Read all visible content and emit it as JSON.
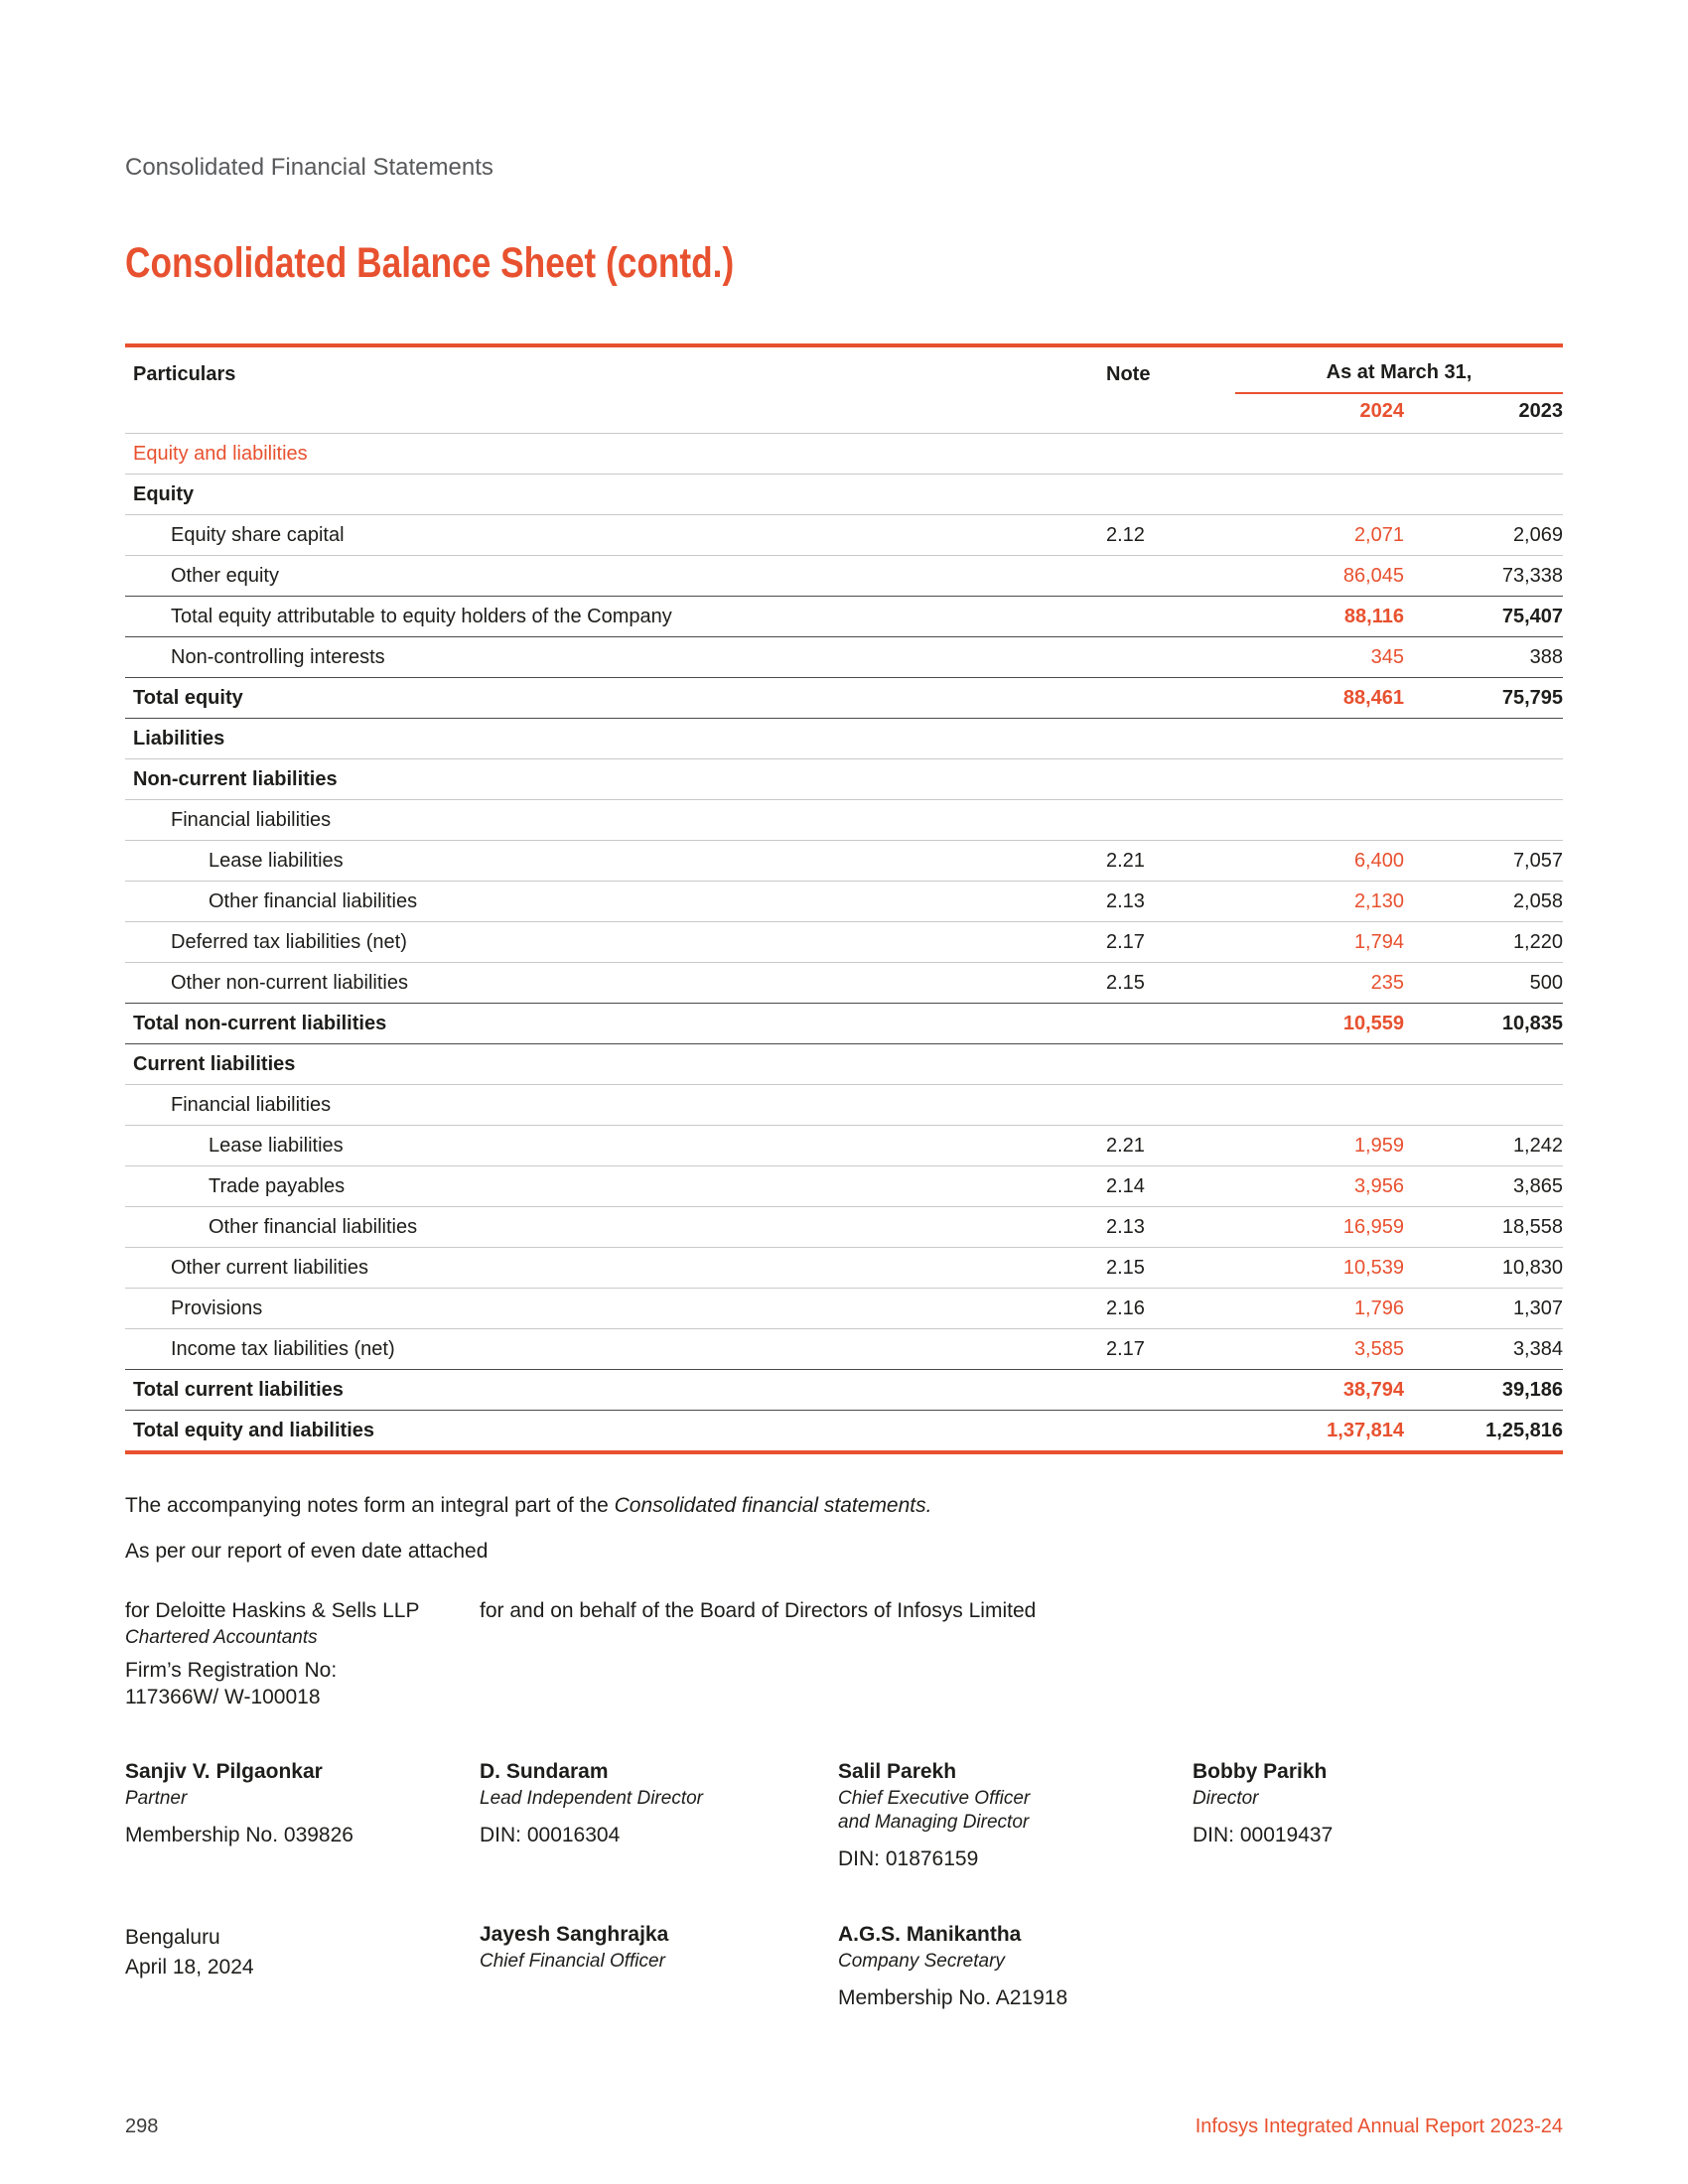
{
  "theme": {
    "accent": "#e8512f",
    "breadcrumb_gray": "#58595b"
  },
  "header": {
    "breadcrumb": "Consolidated Financial Statements",
    "title": "Consolidated Balance Sheet (contd.)"
  },
  "table": {
    "columns": {
      "particulars": "Particulars",
      "note": "Note",
      "as_at": "As at March 31,",
      "year1": "2024",
      "year2": "2023"
    },
    "rows": [
      {
        "label": "Equity and liabilities",
        "type": "section",
        "indent": 0,
        "note": "",
        "v2024": "",
        "v2023": ""
      },
      {
        "label": "Equity",
        "type": "heading",
        "indent": 0,
        "note": "",
        "v2024": "",
        "v2023": ""
      },
      {
        "label": "Equity share capital",
        "type": "item",
        "indent": 1,
        "note": "2.12",
        "v2024": "2,071",
        "v2023": "2,069"
      },
      {
        "label": "Other equity",
        "type": "item",
        "indent": 1,
        "note": "",
        "v2024": "86,045",
        "v2023": "73,338"
      },
      {
        "label": "Total equity attributable to equity holders of the Company",
        "type": "subtotal",
        "indent": 1,
        "note": "",
        "v2024": "88,116",
        "v2023": "75,407"
      },
      {
        "label": "Non-controlling interests",
        "type": "item",
        "indent": 1,
        "note": "",
        "v2024": "345",
        "v2023": "388"
      },
      {
        "label": "Total equity",
        "type": "total",
        "indent": 0,
        "note": "",
        "v2024": "88,461",
        "v2023": "75,795"
      },
      {
        "label": "Liabilities",
        "type": "heading",
        "indent": 0,
        "note": "",
        "v2024": "",
        "v2023": ""
      },
      {
        "label": "Non-current liabilities",
        "type": "heading",
        "indent": 0,
        "note": "",
        "v2024": "",
        "v2023": ""
      },
      {
        "label": "Financial liabilities",
        "type": "item",
        "indent": 1,
        "note": "",
        "v2024": "",
        "v2023": ""
      },
      {
        "label": "Lease liabilities",
        "type": "item",
        "indent": 2,
        "note": "2.21",
        "v2024": "6,400",
        "v2023": "7,057"
      },
      {
        "label": "Other financial liabilities",
        "type": "item",
        "indent": 2,
        "note": "2.13",
        "v2024": "2,130",
        "v2023": "2,058"
      },
      {
        "label": "Deferred tax liabilities (net)",
        "type": "item",
        "indent": 1,
        "note": "2.17",
        "v2024": "1,794",
        "v2023": "1,220"
      },
      {
        "label": "Other non-current liabilities",
        "type": "item",
        "indent": 1,
        "note": "2.15",
        "v2024": "235",
        "v2023": "500"
      },
      {
        "label": "Total non-current liabilities",
        "type": "total",
        "indent": 0,
        "note": "",
        "v2024": "10,559",
        "v2023": "10,835"
      },
      {
        "label": "Current liabilities",
        "type": "heading",
        "indent": 0,
        "note": "",
        "v2024": "",
        "v2023": ""
      },
      {
        "label": "Financial liabilities",
        "type": "item",
        "indent": 1,
        "note": "",
        "v2024": "",
        "v2023": ""
      },
      {
        "label": "Lease liabilities",
        "type": "item",
        "indent": 2,
        "note": "2.21",
        "v2024": "1,959",
        "v2023": "1,242"
      },
      {
        "label": "Trade payables",
        "type": "item",
        "indent": 2,
        "note": "2.14",
        "v2024": "3,956",
        "v2023": "3,865"
      },
      {
        "label": "Other financial liabilities",
        "type": "item",
        "indent": 2,
        "note": "2.13",
        "v2024": "16,959",
        "v2023": "18,558"
      },
      {
        "label": "Other current liabilities",
        "type": "item",
        "indent": 1,
        "note": "2.15",
        "v2024": "10,539",
        "v2023": "10,830"
      },
      {
        "label": "Provisions",
        "type": "item",
        "indent": 1,
        "note": "2.16",
        "v2024": "1,796",
        "v2023": "1,307"
      },
      {
        "label": "Income tax liabilities (net)",
        "type": "item",
        "indent": 1,
        "note": "2.17",
        "v2024": "3,585",
        "v2023": "3,384"
      },
      {
        "label": "Total current liabilities",
        "type": "total",
        "indent": 0,
        "note": "",
        "v2024": "38,794",
        "v2023": "39,186"
      },
      {
        "label": "Total equity and liabilities",
        "type": "grand",
        "indent": 0,
        "note": "",
        "v2024": "1,37,814",
        "v2023": "1,25,816"
      }
    ]
  },
  "notes": {
    "line1_regular": "The accompanying notes form an integral part of the ",
    "line1_italic": "Consolidated financial statements.",
    "line2": "As per our report of even date attached"
  },
  "auditor": {
    "firm": "for Deloitte Haskins & Sells LLP",
    "designation": "Chartered Accountants",
    "reg_label": "Firm’s Registration No:",
    "reg_no": "117366W/ W-100018"
  },
  "board_statement": "for and on behalf of the Board of Directors of Infosys Limited",
  "signatories_row1": [
    {
      "name": "Sanjiv V. Pilgaonkar",
      "role1": "Partner",
      "role2": "",
      "meta": "Membership No. 039826",
      "plain1": "",
      "plain2": ""
    },
    {
      "name": "D. Sundaram",
      "role1": "Lead Independent Director",
      "role2": "",
      "meta": "DIN: 00016304",
      "plain1": "",
      "plain2": ""
    },
    {
      "name": "Salil Parekh",
      "role1": "Chief Executive Officer",
      "role2": "and Managing Director",
      "meta": "DIN: 01876159",
      "plain1": "",
      "plain2": ""
    },
    {
      "name": "Bobby Parikh",
      "role1": "Director",
      "role2": "",
      "meta": "DIN: 00019437",
      "plain1": "",
      "plain2": ""
    }
  ],
  "signatories_row2": [
    {
      "name": "",
      "role1": "",
      "role2": "",
      "meta": "",
      "plain1": "Bengaluru",
      "plain2": "April 18, 2024"
    },
    {
      "name": "Jayesh Sanghrajka",
      "role1": "Chief Financial Officer",
      "role2": "",
      "meta": "",
      "plain1": "",
      "plain2": ""
    },
    {
      "name": "A.G.S. Manikantha",
      "role1": "Company Secretary",
      "role2": "",
      "meta": "Membership No. A21918",
      "plain1": "",
      "plain2": ""
    }
  ],
  "footer": {
    "page_number": "298",
    "report_title": "Infosys Integrated Annual Report 2023-24"
  }
}
